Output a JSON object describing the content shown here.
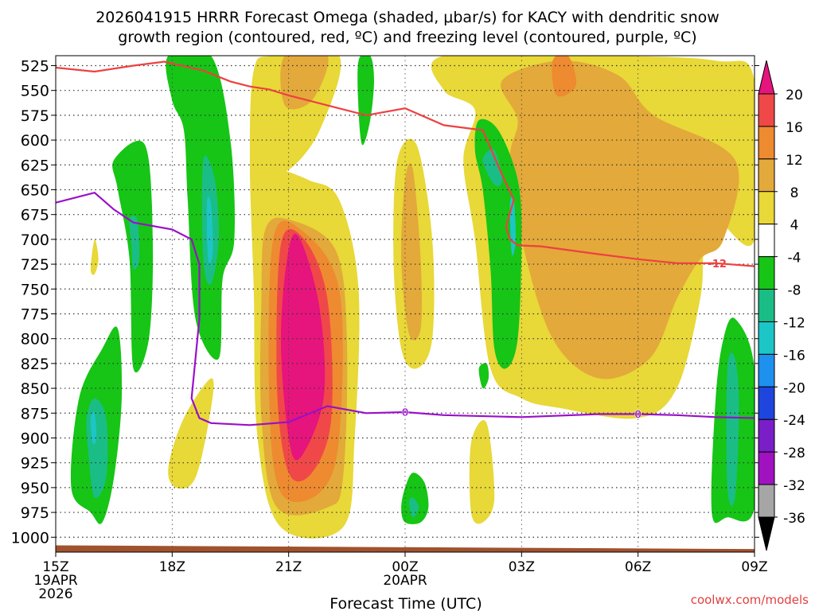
{
  "chart_data": {
    "type": "heatmap",
    "title_line1": "2026041915 HRRR Forecast Omega (shaded, μbar/s) for KACY with dendritic snow",
    "title_line2": "growth region (contoured, red, ºC) and freezing level (contoured, purple, ºC)",
    "xlabel": "Forecast Time (UTC)",
    "ylabel": "",
    "credit": "coolwx.com/models",
    "x_range_hours": [
      0,
      18
    ],
    "y_range_hpa": [
      515,
      1015
    ],
    "y_ticks": [
      525,
      550,
      575,
      600,
      625,
      650,
      675,
      700,
      725,
      750,
      775,
      800,
      825,
      850,
      875,
      900,
      925,
      950,
      975,
      1000
    ],
    "x_ticks": [
      {
        "h": 0,
        "lines": [
          "15Z",
          "19APR",
          "2026"
        ]
      },
      {
        "h": 3,
        "lines": [
          "18Z"
        ]
      },
      {
        "h": 6,
        "lines": [
          "21Z"
        ]
      },
      {
        "h": 9,
        "lines": [
          "00Z",
          "20APR"
        ]
      },
      {
        "h": 12,
        "lines": [
          "03Z"
        ]
      },
      {
        "h": 15,
        "lines": [
          "06Z"
        ]
      },
      {
        "h": 18,
        "lines": [
          "09Z"
        ]
      }
    ],
    "colorbar": {
      "labels": [
        "20",
        "16",
        "12",
        "8",
        "4",
        "-4",
        "-8",
        "-12",
        "-16",
        "-20",
        "-24",
        "-28",
        "-32",
        "-36"
      ],
      "bins": [
        {
          "color": "#e6147d"
        },
        {
          "color": "#f04848"
        },
        {
          "color": "#ee8a30"
        },
        {
          "color": "#e3a93a"
        },
        {
          "color": "#e8d838"
        },
        {
          "color": "#ffffff"
        },
        {
          "color": "#16c516"
        },
        {
          "color": "#1bbd86"
        },
        {
          "color": "#1cc6c6"
        },
        {
          "color": "#1e90ee"
        },
        {
          "color": "#1e46de"
        },
        {
          "color": "#7a1ec8"
        },
        {
          "color": "#a012c0"
        },
        {
          "color": "#a6a6a6"
        }
      ],
      "top_arrow_color": "#e6147d",
      "bottom_arrow_color": "#000000"
    },
    "colors": {
      "dgz_line": "#ee4040",
      "freezing_line": "#9a10c8",
      "ground": "#a0522d"
    },
    "shaded_regions": [
      {
        "level": 4,
        "pts": [
          [
            2.9,
            930
          ],
          [
            3.3,
            880
          ],
          [
            4.0,
            840
          ],
          [
            4.0,
            870
          ],
          [
            3.6,
            940
          ],
          [
            3.1,
            950
          ]
        ]
      },
      {
        "level": 4,
        "pts": [
          [
            0.9,
            730
          ],
          [
            1.0,
            700
          ],
          [
            1.1,
            720
          ],
          [
            1.0,
            735
          ]
        ]
      },
      {
        "level": 4,
        "pts": [
          [
            5.1,
            530
          ],
          [
            5.6,
            515
          ],
          [
            7.3,
            515
          ],
          [
            6.8,
            590
          ],
          [
            6.0,
            630
          ],
          [
            5.5,
            625
          ],
          [
            6.5,
            640
          ],
          [
            7.3,
            660
          ],
          [
            7.8,
            750
          ],
          [
            7.7,
            900
          ],
          [
            7.4,
            990
          ],
          [
            5.8,
            990
          ],
          [
            5.2,
            900
          ],
          [
            5.1,
            750
          ],
          [
            5.0,
            620
          ]
        ]
      },
      {
        "level": 8,
        "pts": [
          [
            5.9,
            515
          ],
          [
            7.0,
            515
          ],
          [
            6.6,
            560
          ],
          [
            5.9,
            565
          ]
        ]
      },
      {
        "level": 8,
        "pts": [
          [
            5.4,
            690
          ],
          [
            6.0,
            680
          ],
          [
            7.2,
            710
          ],
          [
            7.5,
            800
          ],
          [
            7.4,
            940
          ],
          [
            7.0,
            970
          ],
          [
            5.7,
            970
          ],
          [
            5.3,
            880
          ],
          [
            5.3,
            760
          ]
        ]
      },
      {
        "level": 12,
        "pts": [
          [
            5.6,
            700
          ],
          [
            6.3,
            690
          ],
          [
            7.3,
            750
          ],
          [
            7.3,
            900
          ],
          [
            6.8,
            955
          ],
          [
            5.8,
            955
          ],
          [
            5.5,
            860
          ]
        ]
      },
      {
        "level": 16,
        "pts": [
          [
            5.8,
            705
          ],
          [
            6.4,
            700
          ],
          [
            7.0,
            760
          ],
          [
            7.1,
            880
          ],
          [
            6.6,
            935
          ],
          [
            6.0,
            935
          ],
          [
            5.7,
            850
          ]
        ]
      },
      {
        "level": 20,
        "pts": [
          [
            6.0,
            710
          ],
          [
            6.3,
            700
          ],
          [
            6.8,
            770
          ],
          [
            6.9,
            860
          ],
          [
            6.3,
            920
          ],
          [
            6.0,
            900
          ],
          [
            5.8,
            800
          ]
        ]
      },
      {
        "level": 4,
        "pts": [
          [
            8.8,
            620
          ],
          [
            9.3,
            605
          ],
          [
            9.7,
            700
          ],
          [
            9.7,
            800
          ],
          [
            9.3,
            830
          ],
          [
            8.9,
            810
          ],
          [
            8.7,
            720
          ]
        ]
      },
      {
        "level": 8,
        "pts": [
          [
            9.0,
            640
          ],
          [
            9.2,
            630
          ],
          [
            9.4,
            720
          ],
          [
            9.4,
            790
          ],
          [
            9.1,
            795
          ],
          [
            8.9,
            720
          ]
        ]
      },
      {
        "level": 4,
        "pts": [
          [
            10.0,
            515
          ],
          [
            14.0,
            515
          ],
          [
            17.0,
            520
          ],
          [
            18.0,
            540
          ],
          [
            18.0,
            700
          ],
          [
            17.0,
            680
          ],
          [
            16.7,
            710
          ],
          [
            16.6,
            760
          ],
          [
            16.0,
            850
          ],
          [
            15.0,
            880
          ],
          [
            13.0,
            870
          ],
          [
            12.0,
            860
          ],
          [
            11.2,
            830
          ],
          [
            10.8,
            700
          ],
          [
            10.5,
            620
          ],
          [
            10.8,
            570
          ],
          [
            10.0,
            550
          ]
        ]
      },
      {
        "level": 8,
        "pts": [
          [
            11.5,
            540
          ],
          [
            13.0,
            520
          ],
          [
            14.5,
            535
          ],
          [
            15.4,
            575
          ],
          [
            17.5,
            620
          ],
          [
            17.2,
            700
          ],
          [
            16.6,
            720
          ],
          [
            16.0,
            760
          ],
          [
            15.3,
            820
          ],
          [
            14.0,
            840
          ],
          [
            12.8,
            800
          ],
          [
            12.0,
            700
          ],
          [
            11.7,
            620
          ],
          [
            11.9,
            580
          ]
        ]
      },
      {
        "level": 12,
        "pts": [
          [
            12.8,
            520
          ],
          [
            13.2,
            515
          ],
          [
            13.4,
            545
          ],
          [
            12.9,
            555
          ]
        ]
      },
      {
        "level": 4,
        "pts": [
          [
            10.7,
            905
          ],
          [
            11.1,
            885
          ],
          [
            11.3,
            960
          ],
          [
            11.0,
            985
          ],
          [
            10.7,
            975
          ]
        ]
      },
      {
        "level": -4,
        "pts": [
          [
            2.9,
            515
          ],
          [
            4.0,
            515
          ],
          [
            4.5,
            600
          ],
          [
            4.6,
            700
          ],
          [
            4.3,
            740
          ],
          [
            4.2,
            820
          ],
          [
            3.6,
            780
          ],
          [
            3.4,
            660
          ],
          [
            3.3,
            590
          ],
          [
            3.0,
            560
          ]
        ]
      },
      {
        "level": -8,
        "pts": [
          [
            3.8,
            620
          ],
          [
            4.1,
            640
          ],
          [
            4.2,
            700
          ],
          [
            4.0,
            745
          ],
          [
            3.8,
            720
          ]
        ]
      },
      {
        "level": -12,
        "pts": [
          [
            3.9,
            660
          ],
          [
            4.0,
            665
          ],
          [
            4.05,
            710
          ],
          [
            3.95,
            725
          ],
          [
            3.9,
            700
          ]
        ]
      },
      {
        "level": -4,
        "pts": [
          [
            1.5,
            620
          ],
          [
            2.3,
            605
          ],
          [
            2.5,
            700
          ],
          [
            2.4,
            800
          ],
          [
            2.0,
            830
          ],
          [
            1.9,
            720
          ],
          [
            1.6,
            650
          ]
        ]
      },
      {
        "level": -8,
        "pts": [
          [
            1.9,
            680
          ],
          [
            2.1,
            680
          ],
          [
            2.15,
            720
          ],
          [
            2.0,
            730
          ],
          [
            1.95,
            705
          ]
        ]
      },
      {
        "level": -4,
        "pts": [
          [
            0.4,
            950
          ],
          [
            0.6,
            860
          ],
          [
            1.2,
            810
          ],
          [
            1.6,
            790
          ],
          [
            1.7,
            860
          ],
          [
            1.5,
            940
          ],
          [
            1.2,
            985
          ],
          [
            0.9,
            975
          ]
        ]
      },
      {
        "level": -8,
        "pts": [
          [
            0.8,
            880
          ],
          [
            1.0,
            860
          ],
          [
            1.3,
            880
          ],
          [
            1.3,
            940
          ],
          [
            1.0,
            960
          ],
          [
            0.85,
            920
          ]
        ]
      },
      {
        "level": -12,
        "pts": [
          [
            0.9,
            880
          ],
          [
            1.0,
            875
          ],
          [
            1.05,
            900
          ],
          [
            0.95,
            905
          ]
        ]
      },
      {
        "level": -4,
        "pts": [
          [
            7.8,
            520
          ],
          [
            8.1,
            515
          ],
          [
            8.2,
            540
          ],
          [
            8.1,
            580
          ],
          [
            7.9,
            605
          ],
          [
            7.8,
            570
          ]
        ]
      },
      {
        "level": -4,
        "pts": [
          [
            10.9,
            580
          ],
          [
            11.4,
            590
          ],
          [
            11.9,
            640
          ],
          [
            12.0,
            700
          ],
          [
            11.9,
            800
          ],
          [
            11.6,
            830
          ],
          [
            11.3,
            810
          ],
          [
            11.2,
            730
          ],
          [
            11.0,
            650
          ],
          [
            10.8,
            610
          ]
        ]
      },
      {
        "level": -8,
        "pts": [
          [
            11.0,
            620
          ],
          [
            11.3,
            610
          ],
          [
            11.5,
            640
          ],
          [
            11.3,
            645
          ]
        ]
      },
      {
        "level": -12,
        "pts": [
          [
            11.7,
            665
          ],
          [
            11.8,
            660
          ],
          [
            11.85,
            700
          ],
          [
            11.75,
            715
          ]
        ]
      },
      {
        "level": -4,
        "pts": [
          [
            9.0,
            950
          ],
          [
            9.2,
            935
          ],
          [
            9.5,
            945
          ],
          [
            9.6,
            970
          ],
          [
            9.4,
            985
          ],
          [
            9.0,
            985
          ],
          [
            8.9,
            970
          ]
        ]
      },
      {
        "level": -8,
        "pts": [
          [
            9.1,
            965
          ],
          [
            9.2,
            960
          ],
          [
            9.35,
            970
          ],
          [
            9.2,
            980
          ]
        ]
      },
      {
        "level": -4,
        "pts": [
          [
            10.9,
            830
          ],
          [
            11.1,
            825
          ],
          [
            11.15,
            840
          ],
          [
            11.0,
            850
          ]
        ]
      },
      {
        "level": -4,
        "pts": [
          [
            16.9,
            975
          ],
          [
            17.0,
            860
          ],
          [
            17.2,
            800
          ],
          [
            17.5,
            780
          ],
          [
            18.0,
            830
          ],
          [
            18.0,
            970
          ],
          [
            17.3,
            980
          ]
        ]
      },
      {
        "level": -8,
        "pts": [
          [
            17.3,
            830
          ],
          [
            17.5,
            820
          ],
          [
            17.6,
            870
          ],
          [
            17.5,
            960
          ],
          [
            17.3,
            950
          ]
        ]
      }
    ],
    "dgz_line": {
      "label": "-12",
      "label_at": [
        16.8,
        724
      ],
      "x": [
        0.0,
        1.0,
        2.0,
        2.8,
        3.8,
        4.5,
        5.0,
        5.5,
        6.0,
        7.0,
        8.0,
        9.0,
        10.0,
        11.0,
        11.5,
        11.8,
        11.6,
        11.7,
        11.9,
        12.5,
        14.0,
        15.0,
        16.0,
        17.0,
        18.0
      ],
      "y": [
        527,
        531,
        525,
        521,
        530,
        541,
        546,
        549,
        555,
        565,
        575,
        568,
        585,
        590,
        635,
        660,
        687,
        700,
        706,
        707,
        715,
        720,
        724,
        724,
        727
      ]
    },
    "freezing_line": {
      "label": "0",
      "label_at": [
        [
          9.0,
          874
        ],
        [
          15.0,
          876
        ]
      ],
      "x": [
        0.0,
        1.0,
        1.5,
        2.0,
        3.0,
        3.5,
        3.7,
        3.7,
        3.5,
        3.7,
        4.0,
        5.0,
        6.0,
        7.0,
        8.0,
        9.0,
        10.0,
        12.0,
        14.0,
        15.0,
        16.0,
        17.0,
        18.0
      ],
      "y": [
        663,
        653,
        670,
        683,
        690,
        700,
        725,
        780,
        860,
        880,
        885,
        887,
        884,
        868,
        875,
        874,
        877,
        879,
        876,
        876,
        877,
        879,
        880
      ]
    },
    "ground_hpa": [
      1013,
      1013.5
    ]
  }
}
